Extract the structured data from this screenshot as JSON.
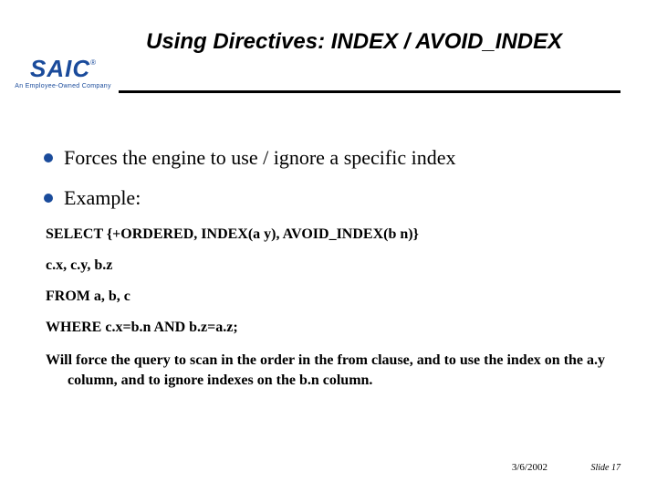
{
  "title": "Using Directives:  INDEX / AVOID_INDEX",
  "logo": {
    "main": "SAIC",
    "reg": "®",
    "tagline": "An Employee-Owned Company"
  },
  "bullets": [
    "Forces the engine to use / ignore a specific index",
    "Example:"
  ],
  "code_lines": [
    "SELECT {+ORDERED, INDEX(a y), AVOID_INDEX(b n)}",
    "c.x, c.y, b.z",
    "FROM a, b, c",
    "WHERE c.x=b.n AND b.z=a.z;"
  ],
  "explanation": "Will force the query to scan in the order in the from clause, and to use the index on the a.y column, and to ignore indexes on the b.n column.",
  "footer": {
    "date": "3/6/2002",
    "slide": "Slide 17"
  },
  "colors": {
    "brand": "#1a4b9b",
    "text": "#000000",
    "background": "#ffffff"
  }
}
